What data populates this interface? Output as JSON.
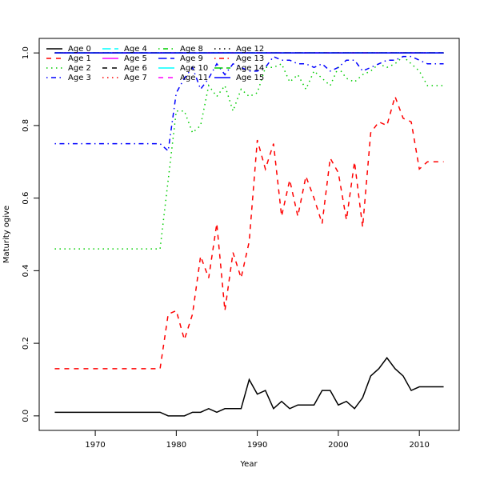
{
  "chart_data": {
    "type": "line",
    "xlabel": "Year",
    "ylabel": "Maturity ogive",
    "x": [
      1965,
      1966,
      1967,
      1968,
      1969,
      1970,
      1971,
      1972,
      1973,
      1974,
      1975,
      1976,
      1977,
      1978,
      1979,
      1980,
      1981,
      1982,
      1983,
      1984,
      1985,
      1986,
      1987,
      1988,
      1989,
      1990,
      1991,
      1992,
      1993,
      1994,
      1995,
      1996,
      1997,
      1998,
      1999,
      2000,
      2001,
      2002,
      2003,
      2004,
      2005,
      2006,
      2007,
      2008,
      2009,
      2010,
      2011,
      2012,
      2013
    ],
    "xlim": [
      1963.08,
      2014.92
    ],
    "xticks": [
      1970,
      1980,
      1990,
      2000,
      2010
    ],
    "ylim": [
      -0.04,
      1.04
    ],
    "yticks": [
      {
        "value": 0,
        "label": "0.0"
      },
      0.2,
      0.4,
      0.6,
      0.8,
      {
        "value": 1,
        "label": "1.0"
      }
    ],
    "legend": "top-left",
    "series": [
      {
        "name": "Age 0",
        "color": "#000000",
        "linestyle": "solid",
        "values": [
          0.01,
          0.01,
          0.01,
          0.01,
          0.01,
          0.01,
          0.01,
          0.01,
          0.01,
          0.01,
          0.01,
          0.01,
          0.01,
          0.01,
          0,
          0,
          0,
          0.01,
          0.01,
          0.02,
          0.01,
          0.02,
          0.02,
          0.02,
          0.1,
          0.06,
          0.07,
          0.02,
          0.04,
          0.02,
          0.03,
          0.03,
          0.03,
          0.07,
          0.07,
          0.03,
          0.04,
          0.02,
          0.05,
          0.11,
          0.13,
          0.16,
          0.13,
          0.11,
          0.07,
          0.08,
          0.08,
          0.08,
          0.08
        ]
      },
      {
        "name": "Age 1",
        "color": "#ff0000",
        "linestyle": "dashed",
        "values": [
          0.13,
          0.13,
          0.13,
          0.13,
          0.13,
          0.13,
          0.13,
          0.13,
          0.13,
          0.13,
          0.13,
          0.13,
          0.13,
          0.13,
          0.28,
          0.29,
          0.21,
          0.28,
          0.44,
          0.38,
          0.53,
          0.29,
          0.45,
          0.38,
          0.48,
          0.76,
          0.68,
          0.75,
          0.55,
          0.65,
          0.55,
          0.66,
          0.6,
          0.53,
          0.71,
          0.67,
          0.54,
          0.7,
          0.52,
          0.78,
          0.81,
          0.8,
          0.88,
          0.82,
          0.81,
          0.68,
          0.7,
          0.7,
          0.7
        ]
      },
      {
        "name": "Age 2",
        "color": "#00cd00",
        "linestyle": "dotted",
        "values": [
          0.46,
          0.46,
          0.46,
          0.46,
          0.46,
          0.46,
          0.46,
          0.46,
          0.46,
          0.46,
          0.46,
          0.46,
          0.46,
          0.46,
          0.65,
          0.84,
          0.84,
          0.78,
          0.8,
          0.91,
          0.88,
          0.91,
          0.84,
          0.9,
          0.88,
          0.89,
          0.96,
          0.96,
          0.97,
          0.92,
          0.94,
          0.9,
          0.95,
          0.93,
          0.91,
          0.96,
          0.93,
          0.92,
          0.94,
          0.95,
          0.97,
          0.96,
          0.97,
          0.99,
          0.97,
          0.95,
          0.91,
          0.91,
          0.91
        ]
      },
      {
        "name": "Age 3",
        "color": "#0000ff",
        "linestyle": "dotdash",
        "values": [
          0.75,
          0.75,
          0.75,
          0.75,
          0.75,
          0.75,
          0.75,
          0.75,
          0.75,
          0.75,
          0.75,
          0.75,
          0.75,
          0.75,
          0.73,
          0.89,
          0.93,
          0.96,
          0.9,
          0.93,
          0.97,
          0.94,
          0.97,
          0.96,
          0.95,
          0.95,
          0.96,
          0.99,
          0.98,
          0.98,
          0.97,
          0.97,
          0.96,
          0.97,
          0.95,
          0.96,
          0.98,
          0.98,
          0.95,
          0.96,
          0.97,
          0.98,
          0.98,
          0.99,
          0.99,
          0.98,
          0.97,
          0.97,
          0.97
        ]
      },
      {
        "name": "Age 4",
        "color": "#00ffff",
        "linestyle": "longdash",
        "values": [
          1,
          1,
          1,
          1,
          1,
          1,
          1,
          1,
          1,
          1,
          1,
          1,
          1,
          1,
          1,
          1,
          1,
          1,
          1,
          1,
          1,
          1,
          1,
          1,
          1,
          1,
          1,
          1,
          1,
          1,
          1,
          1,
          1,
          1,
          1,
          1,
          1,
          1,
          1,
          1,
          1,
          1,
          1,
          1,
          1,
          1,
          1,
          1,
          1
        ]
      },
      {
        "name": "Age 5",
        "color": "#ff00ff",
        "linestyle": "solid",
        "values": [
          1,
          1,
          1,
          1,
          1,
          1,
          1,
          1,
          1,
          1,
          1,
          1,
          1,
          1,
          1,
          1,
          1,
          1,
          1,
          1,
          1,
          1,
          1,
          1,
          1,
          1,
          1,
          1,
          1,
          1,
          1,
          1,
          1,
          1,
          1,
          1,
          1,
          1,
          1,
          1,
          1,
          1,
          1,
          1,
          1,
          1,
          1,
          1,
          1
        ]
      },
      {
        "name": "Age 6",
        "color": "#000000",
        "linestyle": "dashed",
        "values": [
          1,
          1,
          1,
          1,
          1,
          1,
          1,
          1,
          1,
          1,
          1,
          1,
          1,
          1,
          1,
          1,
          1,
          1,
          1,
          1,
          1,
          1,
          1,
          1,
          1,
          1,
          1,
          1,
          1,
          1,
          1,
          1,
          1,
          1,
          1,
          1,
          1,
          1,
          1,
          1,
          1,
          1,
          1,
          1,
          1,
          1,
          1,
          1,
          1
        ]
      },
      {
        "name": "Age 7",
        "color": "#ff0000",
        "linestyle": "dotted",
        "values": [
          1,
          1,
          1,
          1,
          1,
          1,
          1,
          1,
          1,
          1,
          1,
          1,
          1,
          1,
          1,
          1,
          1,
          1,
          1,
          1,
          1,
          1,
          1,
          1,
          1,
          1,
          1,
          1,
          1,
          1,
          1,
          1,
          1,
          1,
          1,
          1,
          1,
          1,
          1,
          1,
          1,
          1,
          1,
          1,
          1,
          1,
          1,
          1,
          1
        ]
      },
      {
        "name": "Age 8",
        "color": "#00cd00",
        "linestyle": "dotdash",
        "values": [
          1,
          1,
          1,
          1,
          1,
          1,
          1,
          1,
          1,
          1,
          1,
          1,
          1,
          1,
          1,
          1,
          1,
          1,
          1,
          1,
          1,
          1,
          1,
          1,
          1,
          1,
          1,
          1,
          1,
          1,
          1,
          1,
          1,
          1,
          1,
          1,
          1,
          1,
          1,
          1,
          1,
          1,
          1,
          1,
          1,
          1,
          1,
          1,
          1
        ]
      },
      {
        "name": "Age 9",
        "color": "#0000ff",
        "linestyle": "longdash",
        "values": [
          1,
          1,
          1,
          1,
          1,
          1,
          1,
          1,
          1,
          1,
          1,
          1,
          1,
          1,
          1,
          1,
          1,
          1,
          1,
          1,
          1,
          1,
          1,
          1,
          1,
          1,
          1,
          1,
          1,
          1,
          1,
          1,
          1,
          1,
          1,
          1,
          1,
          1,
          1,
          1,
          1,
          1,
          1,
          1,
          1,
          1,
          1,
          1,
          1
        ]
      },
      {
        "name": "Age 10",
        "color": "#00ffff",
        "linestyle": "solid",
        "values": [
          1,
          1,
          1,
          1,
          1,
          1,
          1,
          1,
          1,
          1,
          1,
          1,
          1,
          1,
          1,
          1,
          1,
          1,
          1,
          1,
          1,
          1,
          1,
          1,
          1,
          1,
          1,
          1,
          1,
          1,
          1,
          1,
          1,
          1,
          1,
          1,
          1,
          1,
          1,
          1,
          1,
          1,
          1,
          1,
          1,
          1,
          1,
          1,
          1
        ]
      },
      {
        "name": "Age 11",
        "color": "#ff00ff",
        "linestyle": "dashed",
        "values": [
          1,
          1,
          1,
          1,
          1,
          1,
          1,
          1,
          1,
          1,
          1,
          1,
          1,
          1,
          1,
          1,
          1,
          1,
          1,
          1,
          1,
          1,
          1,
          1,
          1,
          1,
          1,
          1,
          1,
          1,
          1,
          1,
          1,
          1,
          1,
          1,
          1,
          1,
          1,
          1,
          1,
          1,
          1,
          1,
          1,
          1,
          1,
          1,
          1
        ]
      },
      {
        "name": "Age 12",
        "color": "#000000",
        "linestyle": "dotted",
        "values": [
          1,
          1,
          1,
          1,
          1,
          1,
          1,
          1,
          1,
          1,
          1,
          1,
          1,
          1,
          1,
          1,
          1,
          1,
          1,
          1,
          1,
          1,
          1,
          1,
          1,
          1,
          1,
          1,
          1,
          1,
          1,
          1,
          1,
          1,
          1,
          1,
          1,
          1,
          1,
          1,
          1,
          1,
          1,
          1,
          1,
          1,
          1,
          1,
          1
        ]
      },
      {
        "name": "Age 13",
        "color": "#ff0000",
        "linestyle": "dotdash",
        "values": [
          1,
          1,
          1,
          1,
          1,
          1,
          1,
          1,
          1,
          1,
          1,
          1,
          1,
          1,
          1,
          1,
          1,
          1,
          1,
          1,
          1,
          1,
          1,
          1,
          1,
          1,
          1,
          1,
          1,
          1,
          1,
          1,
          1,
          1,
          1,
          1,
          1,
          1,
          1,
          1,
          1,
          1,
          1,
          1,
          1,
          1,
          1,
          1,
          1
        ]
      },
      {
        "name": "Age 14",
        "color": "#00cd00",
        "linestyle": "longdash",
        "values": [
          1,
          1,
          1,
          1,
          1,
          1,
          1,
          1,
          1,
          1,
          1,
          1,
          1,
          1,
          1,
          1,
          1,
          1,
          1,
          1,
          1,
          1,
          1,
          1,
          1,
          1,
          1,
          1,
          1,
          1,
          1,
          1,
          1,
          1,
          1,
          1,
          1,
          1,
          1,
          1,
          1,
          1,
          1,
          1,
          1,
          1,
          1,
          1,
          1
        ]
      },
      {
        "name": "Age 15",
        "color": "#0000ff",
        "linestyle": "solid",
        "values": [
          1,
          1,
          1,
          1,
          1,
          1,
          1,
          1,
          1,
          1,
          1,
          1,
          1,
          1,
          1,
          1,
          1,
          1,
          1,
          1,
          1,
          1,
          1,
          1,
          1,
          1,
          1,
          1,
          1,
          1,
          1,
          1,
          1,
          1,
          1,
          1,
          1,
          1,
          1,
          1,
          1,
          1,
          1,
          1,
          1,
          1,
          1,
          1,
          1
        ]
      }
    ]
  }
}
